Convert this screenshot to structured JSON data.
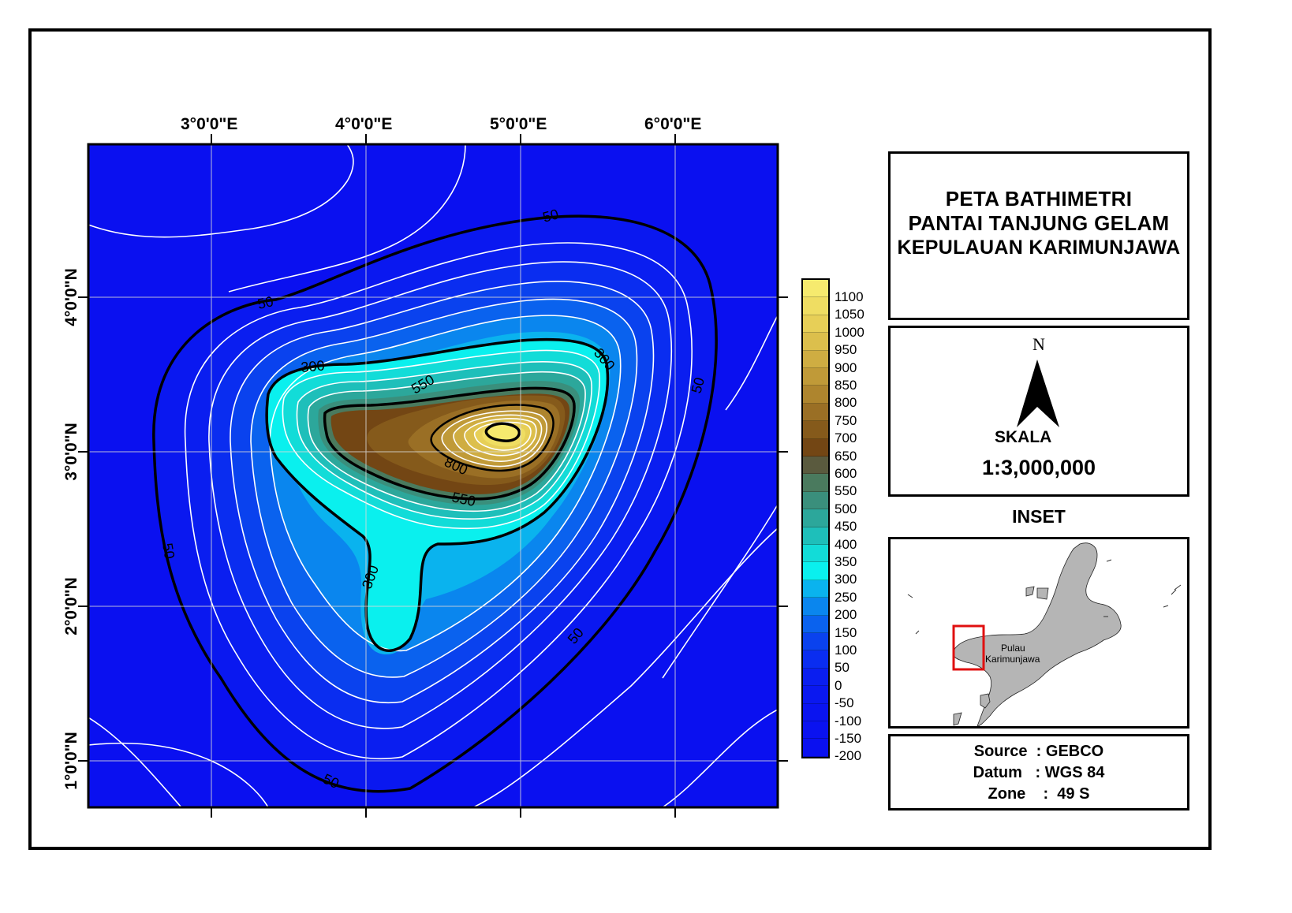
{
  "map": {
    "top_ticks": [
      "3°0'0\"E",
      "4°0'0\"E",
      "5°0'0\"E",
      "6°0'0\"E"
    ],
    "left_ticks": [
      "4°0'0\"N",
      "3°0'0\"N",
      "2°0'0\"N",
      "1°0'0\"N"
    ],
    "contour_labels": [
      "50",
      "50",
      "50",
      "50",
      "50",
      "50",
      "300",
      "300",
      "300",
      "550",
      "800",
      "550"
    ]
  },
  "legend": {
    "labels": [
      "1100",
      "1050",
      "1000",
      "950",
      "900",
      "850",
      "800",
      "750",
      "700",
      "650",
      "600",
      "550",
      "500",
      "450",
      "400",
      "350",
      "300",
      "250",
      "200",
      "150",
      "100",
      "50",
      "0",
      "-50",
      "-100",
      "-150",
      "-200"
    ],
    "colors": [
      "#f6ea6e",
      "#efdd62",
      "#e7cf57",
      "#dcbf4c",
      "#cfad42",
      "#c09a38",
      "#ae852e",
      "#9a6f25",
      "#855a1b",
      "#734614",
      "#5a5a3e",
      "#4a7a5e",
      "#3a8f7c",
      "#2ca79b",
      "#1ebfba",
      "#12dcd8",
      "#0af0ee",
      "#0ab3ee",
      "#0a86ee",
      "#0a62ee",
      "#0a42ee",
      "#0a2df0",
      "#0a1ef0",
      "#0a18f0",
      "#0a14f0",
      "#0a12f0",
      "#0a10f0"
    ]
  },
  "title": {
    "line1": "PETA BATHIMETRI",
    "line2": "PANTAI TANJUNG GELAM",
    "line3": "KEPULAUAN KARIMUNJAWA"
  },
  "north": {
    "letter": "N"
  },
  "scale": {
    "label": "SKALA",
    "value": "1:3,000,000"
  },
  "inset": {
    "heading": "INSET",
    "place_line1": "Pulau",
    "place_line2": "Karimunjawa"
  },
  "source": {
    "line1": "Source  : GEBCO",
    "line2": "Datum   : WGS 84",
    "line3": "Zone    :  49 S"
  },
  "colors": {
    "deep": "#0a10f0",
    "frame": "#000000"
  }
}
